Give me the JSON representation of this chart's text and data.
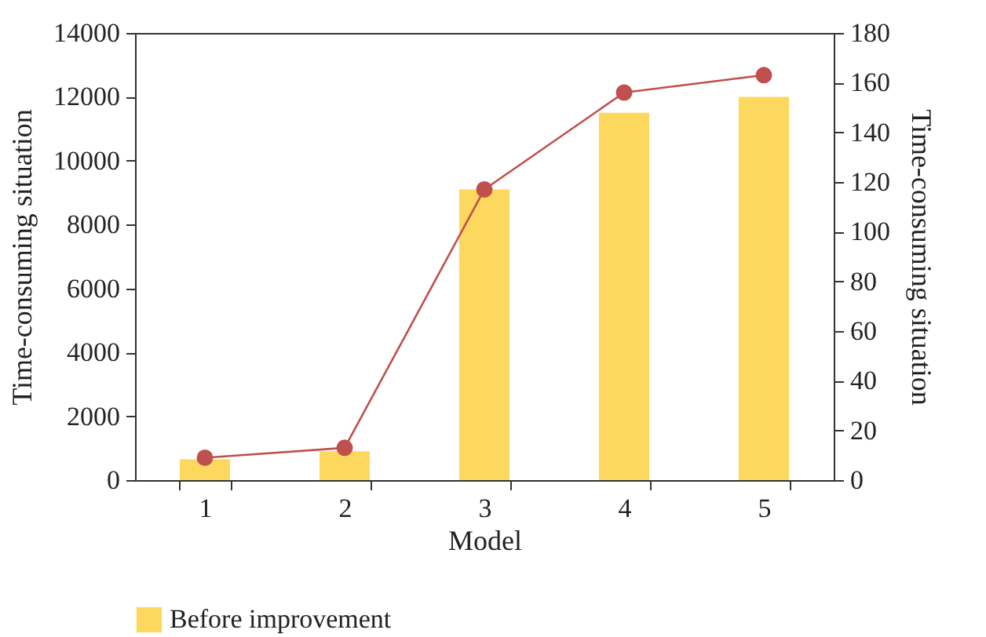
{
  "chart_data": {
    "type": "bar",
    "xlabel": "Model",
    "ylabel": "Time-consuming situation",
    "y2label": "Time-consuming situation",
    "categories": [
      "1",
      "2",
      "3",
      "4",
      "5"
    ],
    "series": [
      {
        "name": "Before improvement",
        "color": "#fdd85e",
        "values": [
          650,
          900,
          9100,
          11500,
          12000
        ]
      },
      {
        "type": "line",
        "axis": "y2",
        "color": "#c0504d",
        "marker": "circle",
        "values": [
          9,
          13,
          117,
          156,
          163
        ]
      }
    ],
    "ylim": [
      0,
      14000
    ],
    "yticks": [
      0,
      2000,
      4000,
      6000,
      8000,
      10000,
      12000,
      14000
    ],
    "y2lim": [
      0,
      180
    ],
    "y2ticks": [
      0,
      20,
      40,
      60,
      80,
      100,
      120,
      140,
      160,
      180
    ],
    "legend": "bottom left",
    "grid": false
  }
}
